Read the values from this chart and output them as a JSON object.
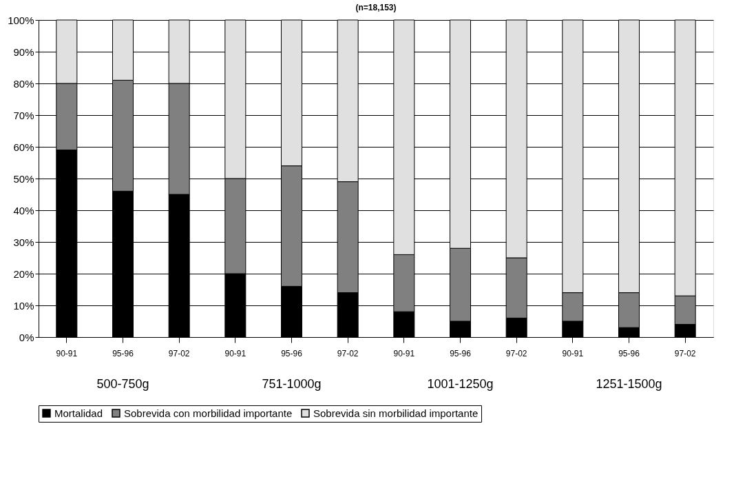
{
  "chart_data": {
    "type": "bar",
    "subtitle": "(n=18,153)",
    "stacked": true,
    "categories": [
      "90-91",
      "95-96",
      "97-02",
      "90-91",
      "95-96",
      "97-02",
      "90-91",
      "95-96",
      "97-02",
      "90-91",
      "95-96",
      "97-02"
    ],
    "series": [
      {
        "name": "Mortalidad",
        "color": "#000000",
        "values": [
          59,
          46,
          45,
          20,
          16,
          14,
          8,
          5,
          6,
          5,
          3,
          4
        ]
      },
      {
        "name": "Sobrevida con morbilidad importante",
        "color": "#808080",
        "values": [
          21,
          35,
          35,
          30,
          38,
          35,
          18,
          23,
          19,
          9,
          11,
          9
        ]
      },
      {
        "name": "Sobrevida sin morbilidad importante",
        "color": "#e0e0e0",
        "values": [
          20,
          19,
          20,
          50,
          46,
          51,
          74,
          72,
          75,
          86,
          86,
          87
        ]
      }
    ],
    "ylim": [
      0,
      100
    ],
    "yticks": [
      {
        "value": 0,
        "label": "0%"
      },
      {
        "value": 10,
        "label": "10%"
      },
      {
        "value": 20,
        "label": "20%"
      },
      {
        "value": 30,
        "label": "30%"
      },
      {
        "value": 40,
        "label": "40%"
      },
      {
        "value": 50,
        "label": "50%"
      },
      {
        "value": 60,
        "label": "60%"
      },
      {
        "value": 70,
        "label": "70%"
      },
      {
        "value": 80,
        "label": "80%"
      },
      {
        "value": 90,
        "label": "90%"
      },
      {
        "value": 100,
        "label": "100%"
      }
    ],
    "grid": "y",
    "legend": "bottom",
    "annotations": [
      "500-750g",
      "751-1000g",
      "1001-1250g",
      "1251-1500g"
    ]
  }
}
